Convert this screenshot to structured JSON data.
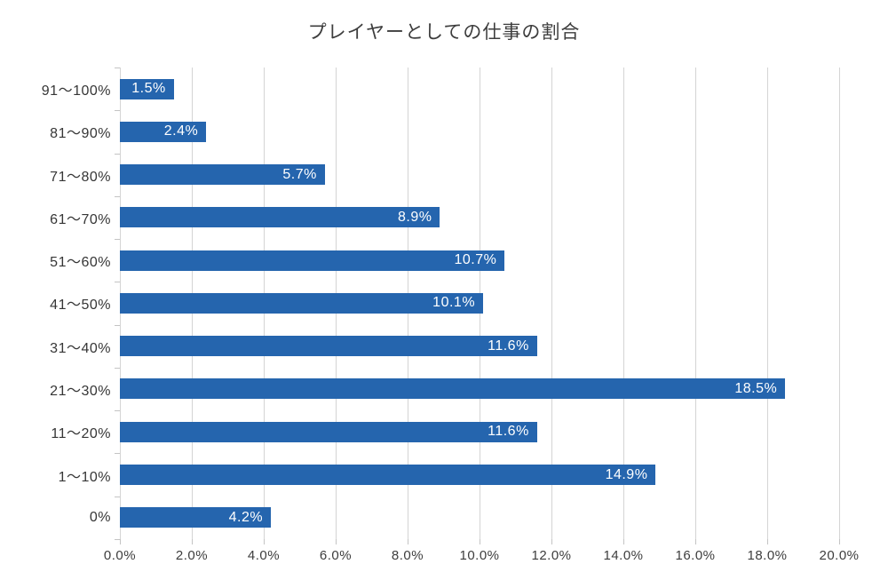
{
  "chart_data": {
    "type": "bar",
    "orientation": "horizontal",
    "title": "プレイヤーとしての仕事の割合",
    "categories": [
      "91〜100%",
      "81〜90%",
      "71〜80%",
      "61〜70%",
      "51〜60%",
      "41〜50%",
      "31〜40%",
      "21〜30%",
      "11〜20%",
      "1〜10%",
      "0%"
    ],
    "values": [
      1.5,
      2.4,
      5.7,
      8.9,
      10.7,
      10.1,
      11.6,
      18.5,
      11.6,
      14.9,
      4.2
    ],
    "data_labels": [
      "1.5%",
      "2.4%",
      "5.7%",
      "8.9%",
      "10.7%",
      "10.1%",
      "11.6%",
      "18.5%",
      "11.6%",
      "14.9%",
      "4.2%"
    ],
    "x_tick_labels": [
      "0.0%",
      "2.0%",
      "4.0%",
      "6.0%",
      "8.0%",
      "10.0%",
      "12.0%",
      "14.0%",
      "16.0%",
      "18.0%",
      "20.0%"
    ],
    "xlim": [
      0,
      20
    ],
    "grid": "vertical",
    "legend": "none",
    "bar_color": "#2565ae",
    "data_label_color": "#ffffff",
    "gridline_color": "#d4d4d4"
  }
}
